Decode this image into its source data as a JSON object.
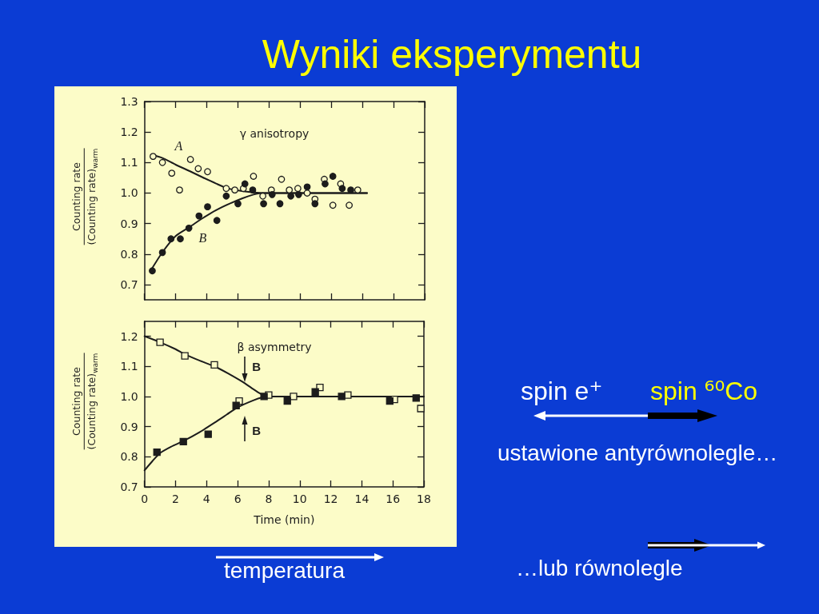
{
  "chart_data": [
    {
      "type": "other",
      "title": "Wyniki eksperymentu",
      "annotations": [
        "spin e⁺",
        "spin ⁶⁰Co",
        "ustawione antyrównolegle…",
        "…lub równolegle",
        "temperatura"
      ]
    },
    {
      "type": "scatter",
      "title": "γ anisotropy",
      "ylabel": "Counting rate\n(Counting rate)$_{warm}$",
      "xlim": [
        0,
        18
      ],
      "xticks": [
        0,
        2,
        4,
        6,
        8,
        10,
        12,
        14,
        16,
        18
      ],
      "ylim": [
        0.65,
        1.3
      ],
      "yticks": [
        0.7,
        0.8,
        0.9,
        {
          "value": 1.0,
          "label": "1.0"
        },
        1.1,
        1.2,
        1.3
      ],
      "tick_labels": "y",
      "annotations": [
        "A",
        "B"
      ],
      "series": [
        {
          "color": "#fcfcc8",
          "marker": "circle",
          "x": [
            0.55,
            1.15,
            1.75,
            2.25,
            2.95,
            3.45,
            4.05,
            5.25,
            5.8,
            6.35,
            7.0,
            7.6,
            8.15,
            8.8,
            9.3,
            9.85,
            10.45,
            10.95,
            11.55,
            12.1,
            12.6,
            13.15,
            13.7
          ],
          "values": [
            1.12,
            1.1,
            1.065,
            1.01,
            1.11,
            1.08,
            1.07,
            1.015,
            1.01,
            1.015,
            1.055,
            0.99,
            1.01,
            1.045,
            1.01,
            1.015,
            1.0,
            0.98,
            1.045,
            0.96,
            1.03,
            0.96,
            1.01
          ]
        },
        {
          "color": "#1c1c1c",
          "marker": "circle",
          "x": [
            0.5,
            1.15,
            1.7,
            2.3,
            2.85,
            3.5,
            4.05,
            4.65,
            5.25,
            6.0,
            6.45,
            6.95,
            7.65,
            8.2,
            8.7,
            9.4,
            9.9,
            10.45,
            10.95,
            11.6,
            12.1,
            12.7,
            13.25
          ],
          "values": [
            0.745,
            0.805,
            0.85,
            0.85,
            0.885,
            0.925,
            0.955,
            0.91,
            0.99,
            0.965,
            1.03,
            1.01,
            0.965,
            0.995,
            0.965,
            0.99,
            0.995,
            1.02,
            0.965,
            1.03,
            1.055,
            1.015,
            1.01
          ]
        },
        {
          "type": "line",
          "color": "#1c1c1c",
          "marker": "none",
          "x": [
            0.5,
            1.15,
            2.0,
            2.9,
            3.75,
            4.6,
            5.3,
            5.95,
            6.8,
            7.5,
            14.3
          ],
          "values": [
            1.125,
            1.115,
            1.093,
            1.072,
            1.051,
            1.031,
            1.016,
            1.009,
            1.003,
            1.0,
            1.0
          ]
        },
        {
          "type": "line",
          "color": "#1c1c1c",
          "marker": "none",
          "x": [
            0.45,
            1.15,
            2.0,
            2.9,
            3.75,
            4.6,
            5.45,
            6.3,
            7.0,
            7.5,
            14.3
          ],
          "values": [
            0.75,
            0.806,
            0.859,
            0.889,
            0.918,
            0.944,
            0.965,
            0.983,
            0.995,
            1.0,
            1.0
          ]
        }
      ]
    },
    {
      "type": "scatter",
      "title": "β asymmetry",
      "xlabel": "Time (min)",
      "ylabel": "Counting rate\n(Counting rate)$_{warm}$",
      "xlim": [
        0,
        18
      ],
      "xticks": [
        0,
        2,
        4,
        6,
        8,
        10,
        12,
        14,
        16,
        18
      ],
      "ylim": [
        0.7,
        1.25
      ],
      "yticks": [
        0.7,
        0.8,
        0.9,
        {
          "value": 1.0,
          "label": "1.0"
        },
        1.1,
        1.2
      ],
      "annotations": [
        "B",
        "B"
      ],
      "series": [
        {
          "color": "#fcfcc8",
          "marker": "square",
          "x": [
            1.0,
            2.6,
            4.5,
            6.1,
            8.0,
            9.6,
            11.3,
            13.1,
            16.1,
            17.8
          ],
          "values": [
            1.18,
            1.135,
            1.105,
            0.985,
            1.005,
            1.0,
            1.03,
            1.005,
            0.99,
            0.96
          ]
        },
        {
          "color": "#1c1c1c",
          "marker": "square",
          "x": [
            0.8,
            2.5,
            4.1,
            5.9,
            7.7,
            9.2,
            11.0,
            12.7,
            15.8,
            17.5
          ],
          "values": [
            0.815,
            0.85,
            0.875,
            0.97,
            1.0,
            0.985,
            1.015,
            1.0,
            0.985,
            0.995
          ]
        },
        {
          "type": "line",
          "color": "#1c1c1c",
          "marker": "none",
          "x": [
            0,
            1,
            2,
            2.6,
            3.5,
            4.6,
            5.5,
            6.3,
            6.9,
            7.35,
            7.7,
            8.1,
            18
          ],
          "values": [
            1.2,
            1.18,
            1.157,
            1.14,
            1.12,
            1.098,
            1.073,
            1.049,
            1.028,
            1.013,
            1.004,
            1.0,
            1.0
          ]
        },
        {
          "type": "line",
          "color": "#1c1c1c",
          "marker": "none",
          "x": [
            0,
            0.5,
            1,
            1.7,
            2.5,
            3.5,
            4.6,
            5.3,
            6,
            7,
            7.6,
            8.1,
            18
          ],
          "values": [
            0.755,
            0.785,
            0.812,
            0.833,
            0.852,
            0.88,
            0.916,
            0.94,
            0.964,
            0.987,
            0.997,
            1.0,
            1.0
          ]
        }
      ]
    }
  ]
}
